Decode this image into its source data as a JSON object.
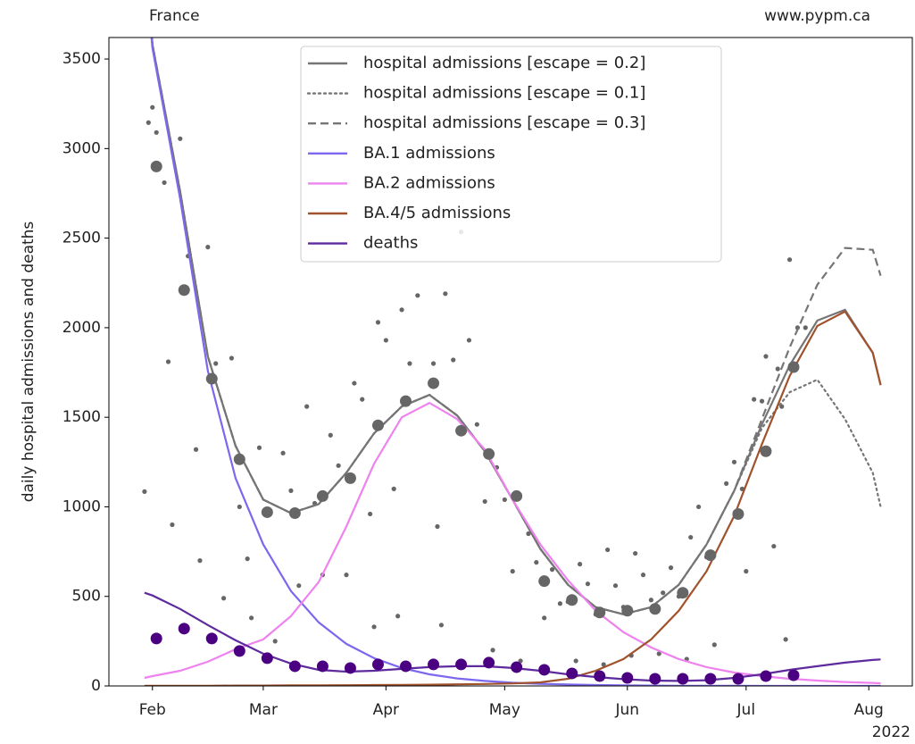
{
  "chart_data": {
    "type": "line",
    "title_left": "France",
    "title_right": "www.pypm.ca",
    "ylabel": "daily hospital admissions and deaths",
    "xlim": [
      "2022-01-21",
      "2022-08-12"
    ],
    "xticks": [
      {
        "value": "2022-02-01",
        "label": "Feb"
      },
      {
        "value": "2022-03-01",
        "label": "Mar"
      },
      {
        "value": "2022-04-01",
        "label": "Apr"
      },
      {
        "value": "2022-05-01",
        "label": "May"
      },
      {
        "value": "2022-06-01",
        "label": "Jun"
      },
      {
        "value": "2022-07-01",
        "label": "Jul"
      },
      {
        "value": "2022-08-01",
        "label": "Aug"
      }
    ],
    "xaxis_year": "2022",
    "ylim": [
      0,
      3620
    ],
    "yticks": [
      0,
      500,
      1000,
      1500,
      2000,
      2500,
      3000,
      3500
    ],
    "legend": "upper center",
    "x": [
      "2022-01-30",
      "2022-02-01",
      "2022-02-08",
      "2022-02-15",
      "2022-02-22",
      "2022-03-01",
      "2022-03-08",
      "2022-03-15",
      "2022-03-22",
      "2022-03-29",
      "2022-04-05",
      "2022-04-12",
      "2022-04-19",
      "2022-04-26",
      "2022-05-03",
      "2022-05-10",
      "2022-05-17",
      "2022-05-24",
      "2022-05-31",
      "2022-06-07",
      "2022-06-14",
      "2022-06-21",
      "2022-06-28",
      "2022-07-05",
      "2022-07-12",
      "2022-07-19",
      "2022-07-26",
      "2022-08-02",
      "2022-08-04"
    ],
    "series": [
      {
        "name": "hospital admissions [escape = 0.2]",
        "color": "#757575",
        "linestyle": "solid",
        "values": [
          4100,
          3580,
          2760,
          1840,
          1340,
          1040,
          965,
          1015,
          1190,
          1410,
          1560,
          1625,
          1510,
          1310,
          1040,
          765,
          565,
          440,
          400,
          440,
          565,
          790,
          1090,
          1460,
          1790,
          2040,
          2100,
          1860,
          1680
        ]
      },
      {
        "name": "hospital admissions [escape = 0.1]",
        "color": "#757575",
        "linestyle": "dotted",
        "values": [
          4100,
          3580,
          2760,
          1840,
          1340,
          1040,
          965,
          1015,
          1190,
          1410,
          1560,
          1625,
          1510,
          1310,
          1040,
          765,
          565,
          440,
          400,
          440,
          565,
          790,
          1090,
          1440,
          1640,
          1710,
          1490,
          1190,
          1000
        ]
      },
      {
        "name": "hospital admissions [escape = 0.3]",
        "color": "#757575",
        "linestyle": "dashed",
        "values": [
          4100,
          3580,
          2760,
          1840,
          1340,
          1040,
          965,
          1015,
          1190,
          1410,
          1560,
          1625,
          1510,
          1310,
          1040,
          765,
          565,
          440,
          400,
          440,
          565,
          790,
          1090,
          1490,
          1890,
          2240,
          2445,
          2435,
          2290
        ]
      },
      {
        "name": "BA.1 admissions",
        "color": "#7b68ee",
        "linestyle": "solid",
        "values": [
          4050,
          3560,
          2720,
          1760,
          1160,
          790,
          530,
          355,
          235,
          155,
          100,
          65,
          42,
          28,
          18,
          12,
          8,
          5,
          3,
          2,
          1,
          1,
          1,
          0,
          0,
          0,
          0,
          0,
          0
        ]
      },
      {
        "name": "BA.2 admissions",
        "color": "#ee82ee",
        "linestyle": "solid",
        "values": [
          45,
          55,
          85,
          135,
          205,
          260,
          390,
          580,
          890,
          1240,
          1500,
          1580,
          1490,
          1320,
          1040,
          790,
          590,
          420,
          300,
          215,
          150,
          105,
          75,
          55,
          40,
          30,
          22,
          17,
          15
        ]
      },
      {
        "name": "BA.4/5 admissions",
        "color": "#a0522d",
        "linestyle": "solid",
        "values": [
          1,
          1,
          1,
          1,
          2,
          2,
          3,
          3,
          4,
          5,
          6,
          7,
          9,
          11,
          14,
          20,
          40,
          85,
          150,
          260,
          420,
          640,
          950,
          1350,
          1730,
          2010,
          2090,
          1860,
          1680
        ]
      },
      {
        "name": "deaths",
        "color": "#5e2a9e",
        "linestyle": "solid",
        "values": [
          520,
          505,
          430,
          340,
          255,
          180,
          125,
          90,
          80,
          85,
          95,
          105,
          110,
          110,
          100,
          85,
          65,
          50,
          38,
          30,
          28,
          32,
          45,
          65,
          90,
          110,
          130,
          145,
          148
        ]
      }
    ],
    "scatter": [
      {
        "color": "#666666",
        "x": [
          "2022-01-30",
          "2022-01-31",
          "2022-02-01",
          "2022-02-02",
          "2022-02-04",
          "2022-02-05",
          "2022-02-06",
          "2022-02-08",
          "2022-02-10",
          "2022-02-12",
          "2022-02-13",
          "2022-02-15",
          "2022-02-17",
          "2022-02-19",
          "2022-02-21",
          "2022-02-23",
          "2022-02-25",
          "2022-02-26",
          "2022-02-28",
          "2022-03-02",
          "2022-03-04",
          "2022-03-06",
          "2022-03-08",
          "2022-03-10",
          "2022-03-12",
          "2022-03-14",
          "2022-03-16",
          "2022-03-18",
          "2022-03-20",
          "2022-03-22",
          "2022-03-24",
          "2022-03-26",
          "2022-03-28",
          "2022-03-29",
          "2022-03-30",
          "2022-04-01",
          "2022-04-03",
          "2022-04-04",
          "2022-04-05",
          "2022-04-07",
          "2022-04-09",
          "2022-04-11",
          "2022-04-13",
          "2022-04-14",
          "2022-04-15",
          "2022-04-16",
          "2022-04-18",
          "2022-04-20",
          "2022-04-22",
          "2022-04-24",
          "2022-04-26",
          "2022-04-28",
          "2022-04-29",
          "2022-05-01",
          "2022-05-03",
          "2022-05-05",
          "2022-05-07",
          "2022-05-09",
          "2022-05-11",
          "2022-05-13",
          "2022-05-15",
          "2022-05-17",
          "2022-05-19",
          "2022-05-20",
          "2022-05-22",
          "2022-05-24",
          "2022-05-26",
          "2022-05-27",
          "2022-05-29",
          "2022-05-31",
          "2022-06-02",
          "2022-06-03",
          "2022-06-05",
          "2022-06-07",
          "2022-06-09",
          "2022-06-10",
          "2022-06-12",
          "2022-06-14",
          "2022-06-16",
          "2022-06-17",
          "2022-06-19",
          "2022-06-21",
          "2022-06-23",
          "2022-06-26",
          "2022-06-28",
          "2022-06-30",
          "2022-07-01",
          "2022-07-03",
          "2022-07-05",
          "2022-07-06",
          "2022-07-08",
          "2022-07-09",
          "2022-07-10",
          "2022-07-11",
          "2022-07-12",
          "2022-07-13",
          "2022-07-14",
          "2022-07-16"
        ],
        "values": [
          1085,
          3145,
          3230,
          3090,
          2810,
          1810,
          900,
          3055,
          2400,
          1320,
          700,
          2450,
          1800,
          490,
          1830,
          1000,
          710,
          380,
          1330,
          980,
          250,
          1300,
          1090,
          560,
          1560,
          1020,
          620,
          1400,
          1230,
          620,
          1690,
          1600,
          960,
          330,
          2030,
          1930,
          1100,
          390,
          2100,
          1800,
          2180,
          2615,
          1800,
          890,
          340,
          2190,
          1820,
          2535,
          1930,
          1460,
          1030,
          200,
          1220,
          1040,
          640,
          140,
          850,
          690,
          380,
          650,
          460,
          470,
          140,
          680,
          570,
          400,
          120,
          760,
          560,
          440,
          170,
          740,
          620,
          480,
          180,
          520,
          660,
          500,
          150,
          830,
          1000,
          720,
          230,
          1130,
          1250,
          1100,
          640,
          1600,
          1590,
          1840,
          780,
          1770,
          1560,
          260,
          2380,
          1780,
          2000,
          2000
        ]
      },
      {
        "color": "#666666",
        "x": [
          "2022-02-02",
          "2022-02-09",
          "2022-02-16",
          "2022-02-23",
          "2022-03-02",
          "2022-03-09",
          "2022-03-16",
          "2022-03-23",
          "2022-03-30",
          "2022-04-06",
          "2022-04-13",
          "2022-04-20",
          "2022-04-27",
          "2022-05-04",
          "2022-05-11",
          "2022-05-18",
          "2022-05-25",
          "2022-06-01",
          "2022-06-08",
          "2022-06-15",
          "2022-06-22",
          "2022-06-29",
          "2022-07-06",
          "2022-07-13"
        ],
        "values": [
          2900,
          2210,
          1715,
          1265,
          970,
          965,
          1060,
          1160,
          1455,
          1590,
          1690,
          1425,
          1295,
          1060,
          585,
          480,
          410,
          420,
          430,
          520,
          730,
          960,
          1310,
          1780
        ]
      },
      {
        "color": "#4b0082",
        "x": [
          "2022-02-02",
          "2022-02-09",
          "2022-02-16",
          "2022-02-23",
          "2022-03-02",
          "2022-03-09",
          "2022-03-16",
          "2022-03-23",
          "2022-03-30",
          "2022-04-06",
          "2022-04-13",
          "2022-04-20",
          "2022-04-27",
          "2022-05-04",
          "2022-05-11",
          "2022-05-18",
          "2022-05-25",
          "2022-06-01",
          "2022-06-08",
          "2022-06-15",
          "2022-06-22",
          "2022-06-29",
          "2022-07-06",
          "2022-07-13"
        ],
        "values": [
          265,
          320,
          265,
          195,
          155,
          110,
          110,
          100,
          120,
          110,
          120,
          120,
          130,
          105,
          90,
          70,
          55,
          45,
          40,
          40,
          40,
          40,
          55,
          60
        ]
      }
    ]
  }
}
